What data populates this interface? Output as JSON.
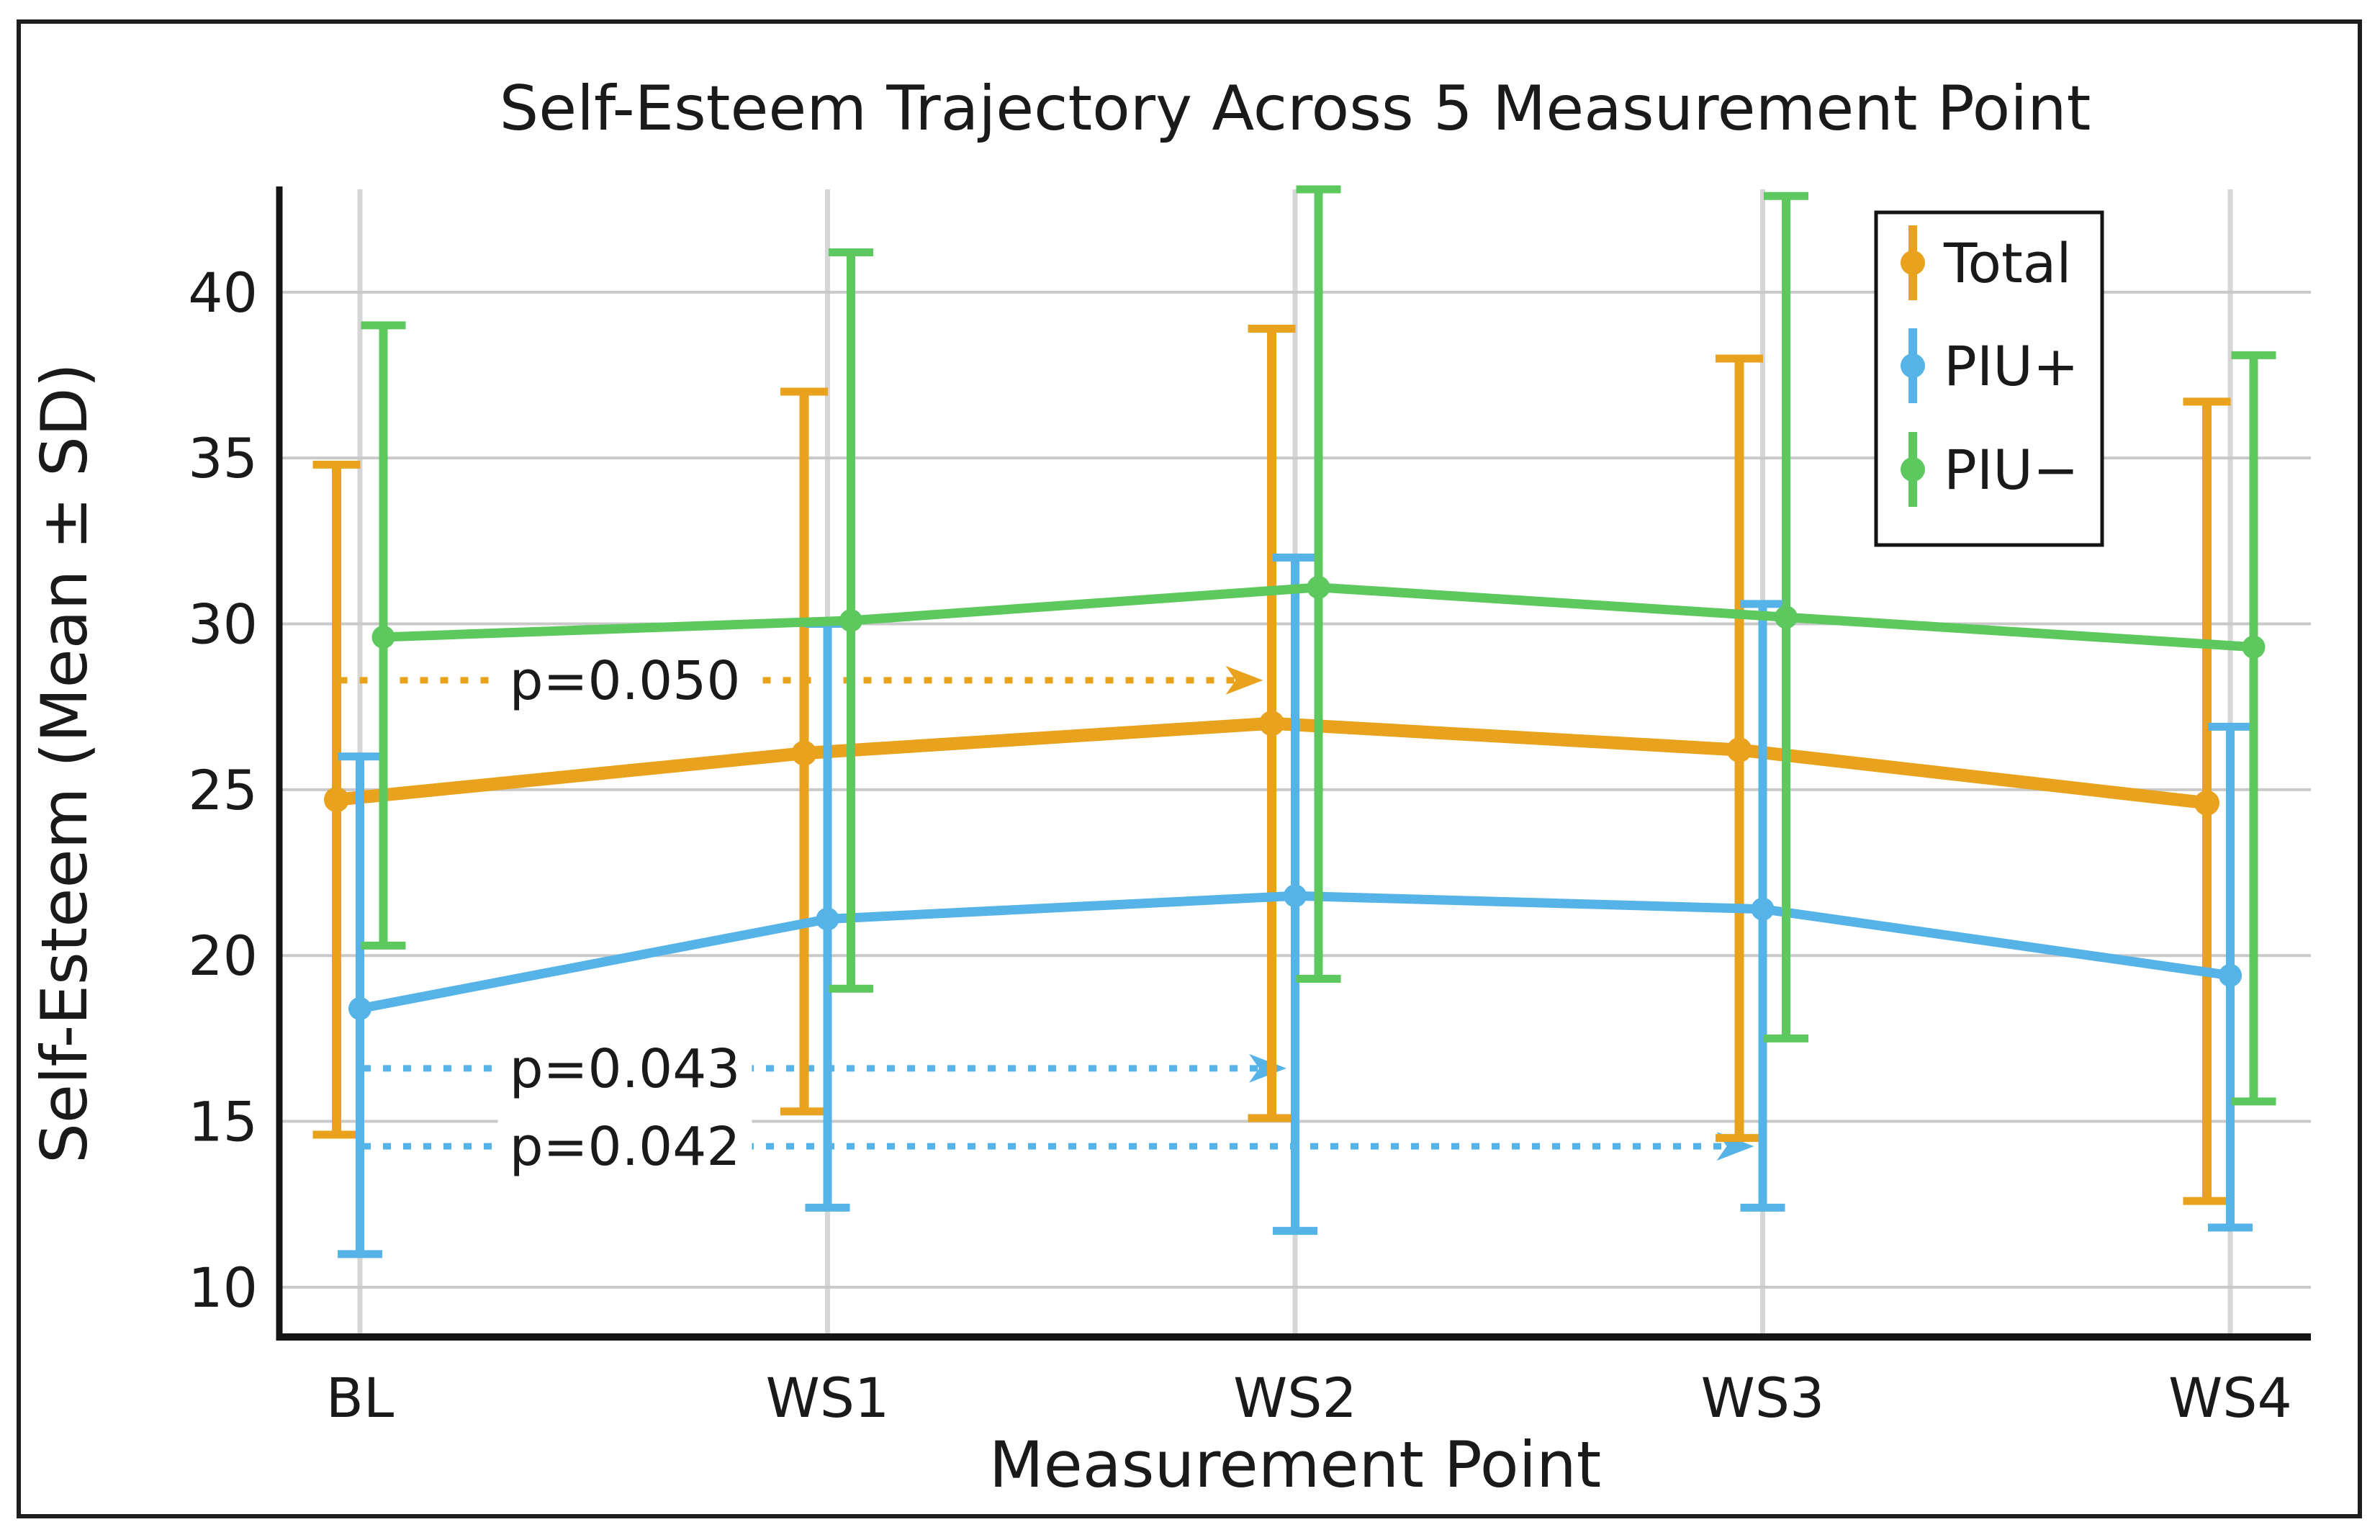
{
  "figure": {
    "title": "Self-Esteem Trajectory Across 5 Measurement Point",
    "background_color": "#ffffff",
    "border_color": "#1e1e1e",
    "text_color": "#1a1a1a",
    "gridline_color": "#c9c9c9",
    "spine_color": "#141414"
  },
  "chart_data": {
    "type": "line",
    "title": "Self-Esteem Trajectory Across 5 Measurement Point",
    "xlabel": "Measurement Point",
    "ylabel": "Self-Esteem (Mean ± SD)",
    "categories": [
      "BL",
      "WS1",
      "WS2",
      "WS3",
      "WS4"
    ],
    "yticks": [
      10,
      15,
      20,
      25,
      30,
      35,
      40
    ],
    "ylim": [
      8.5,
      43.1
    ],
    "grid": "horizontal and vertical, light gray",
    "legend_position": "upper right",
    "marker": "circle on vertical error bar",
    "series": [
      {
        "name": "Total",
        "color": "#E8A21D",
        "means": [
          24.7,
          26.1,
          27.0,
          26.2,
          24.6
        ],
        "err_lo": [
          14.6,
          15.3,
          15.1,
          14.5,
          12.6
        ],
        "err_hi": [
          34.8,
          37.0,
          38.9,
          38.0,
          36.7
        ]
      },
      {
        "name": "PIU+",
        "color": "#56B3E8",
        "means": [
          18.4,
          21.1,
          21.8,
          21.4,
          19.4
        ],
        "err_lo": [
          11.0,
          12.4,
          11.7,
          12.4,
          11.8
        ],
        "err_hi": [
          26.0,
          30.0,
          32.0,
          30.6,
          26.9
        ]
      },
      {
        "name": "PIU−",
        "color": "#5DC85D",
        "means": [
          29.6,
          30.1,
          31.1,
          30.2,
          29.3
        ],
        "err_lo": [
          20.3,
          19.0,
          19.3,
          17.5,
          15.6
        ],
        "err_hi": [
          39.0,
          41.2,
          43.1,
          42.9,
          38.1
        ]
      }
    ],
    "annotations": [
      {
        "text": "p=0.050",
        "color": "#E8A21D",
        "y": 28.3,
        "from_category": "BL",
        "to_category": "WS2",
        "series": "Total",
        "style": "dotted arrow"
      },
      {
        "text": "p=0.043",
        "color": "#56B3E8",
        "y": 16.6,
        "from_category": "BL",
        "to_category": "WS2",
        "series": "PIU+",
        "style": "dotted arrow"
      },
      {
        "text": "p=0.042",
        "color": "#56B3E8",
        "y": 14.25,
        "from_category": "BL",
        "to_category": "WS3",
        "series": "PIU+",
        "style": "dotted arrow"
      }
    ]
  },
  "legend": {
    "items": [
      {
        "label": "Total",
        "color": "#E8A21D"
      },
      {
        "label": "PIU+",
        "color": "#56B3E8"
      },
      {
        "label": "PIU−",
        "color": "#5DC85D"
      }
    ]
  }
}
